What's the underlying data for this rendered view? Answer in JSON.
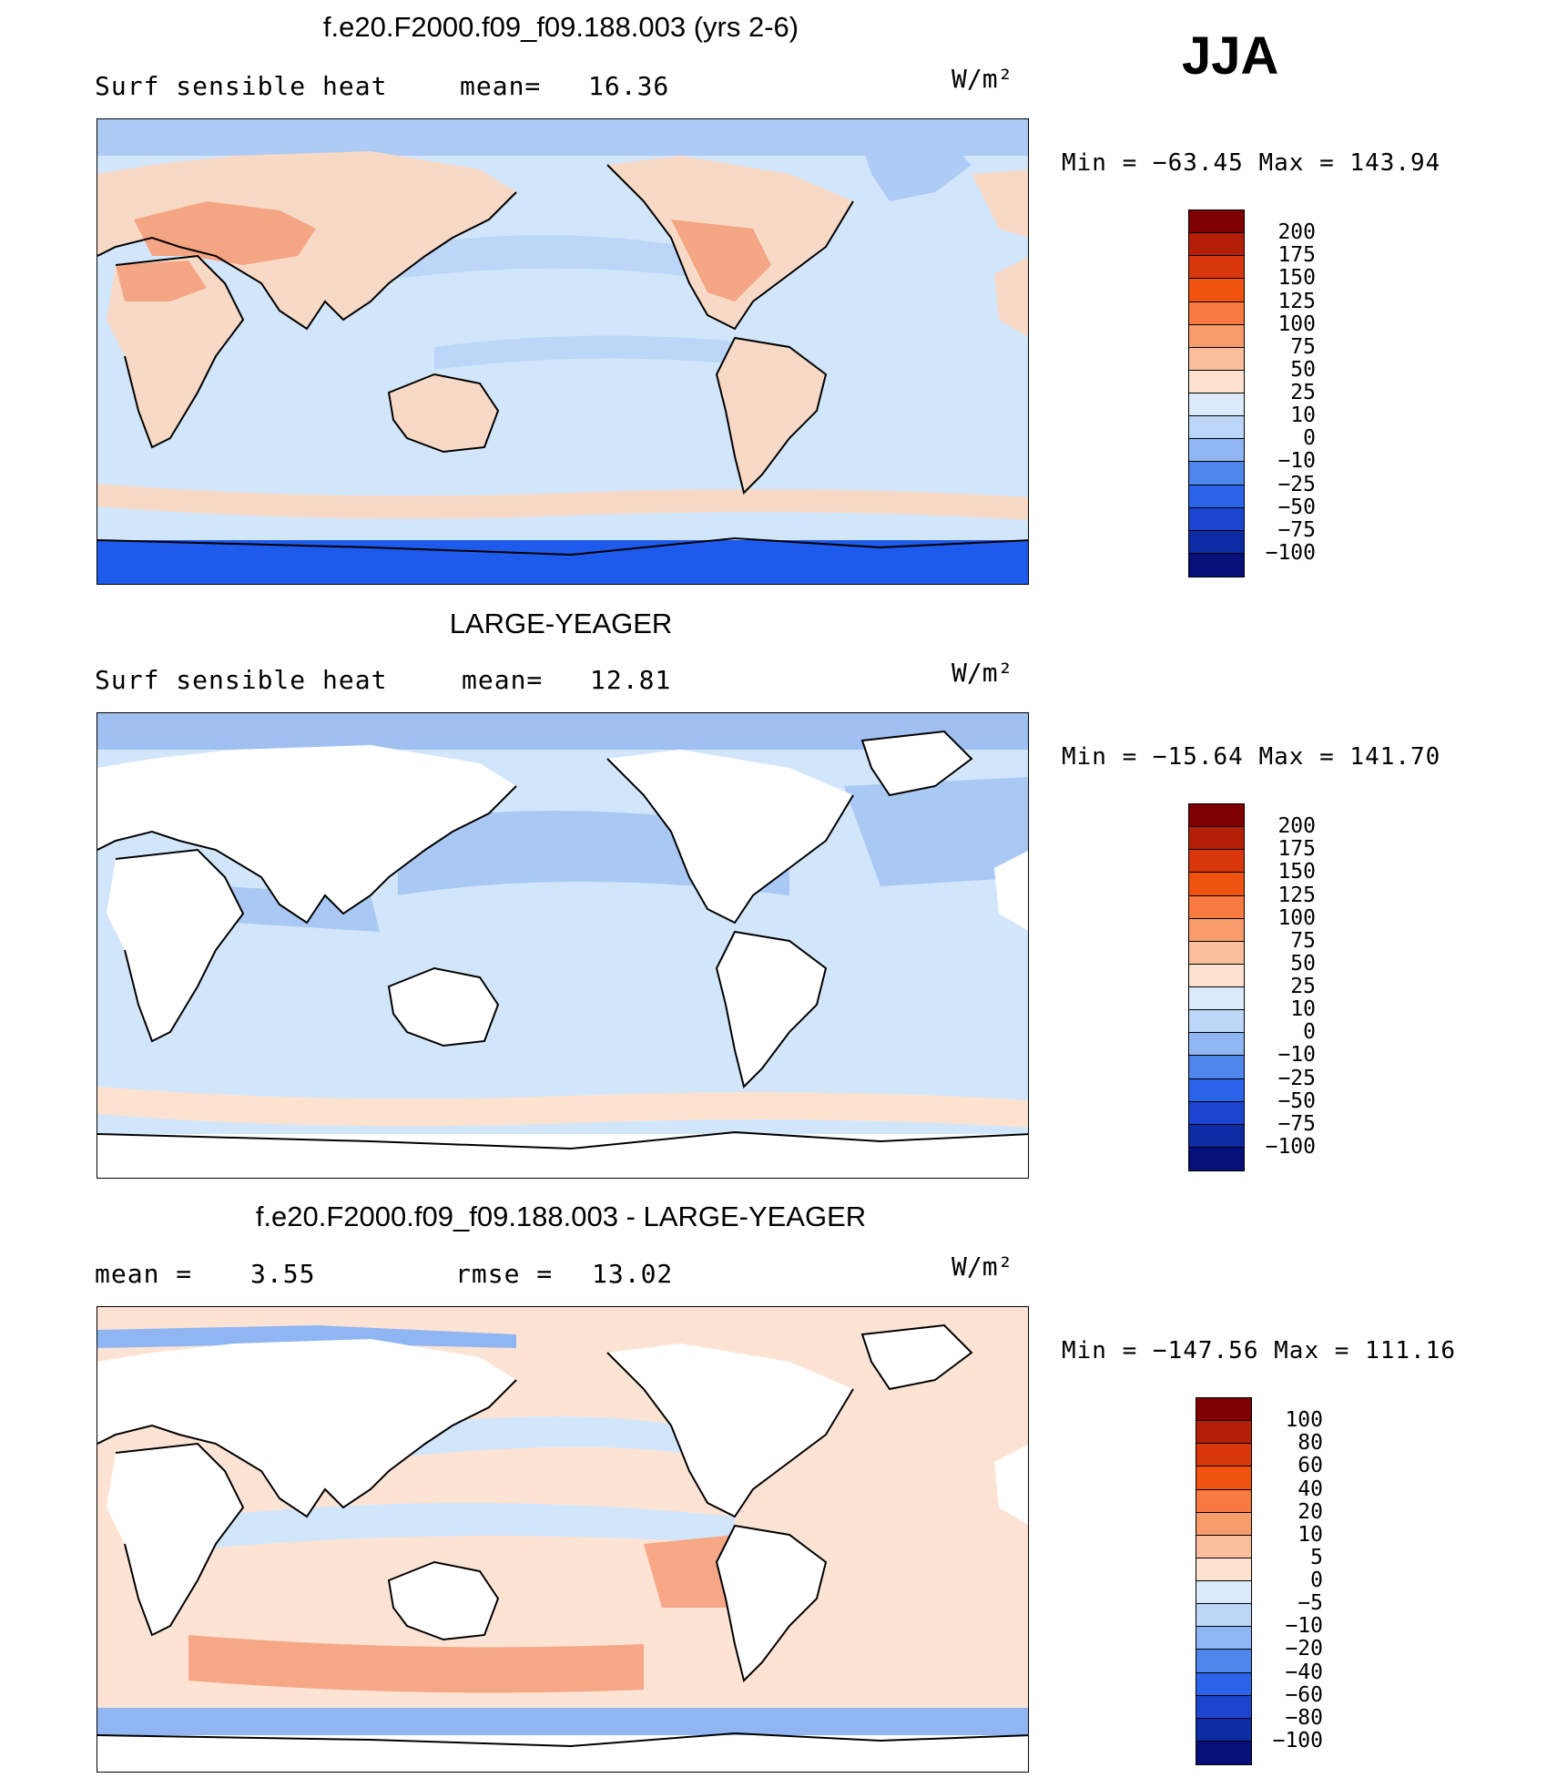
{
  "season": "JJA",
  "units_label": "W/m²",
  "panels": [
    {
      "title": "f.e20.F2000.f09_f09.188.003 (yrs 2-6)",
      "field_label": "Surf  sensible  heat",
      "stat1_label": "mean=",
      "stat1_value": "16.36",
      "stat2_label": "",
      "stat2_value": "",
      "min_max": "Min  =  −63.45  Max  =  143.94",
      "land_filled": true,
      "colors": {
        "ocean": "#d2e6fb",
        "ocean_alt": "#bcd6f7",
        "land": "#f8d9c6",
        "land_hot": "#f4a583",
        "ice": "#1e5aeb",
        "arctic": "#aecbf5"
      }
    },
    {
      "title": "LARGE-YEAGER",
      "field_label": "Surf  sensible  heat",
      "stat1_label": "mean=",
      "stat1_value": "12.81",
      "stat2_label": "",
      "stat2_value": "",
      "min_max": "Min  =  −15.64  Max  =  141.70",
      "land_filled": false,
      "colors": {
        "ocean": "#d2e6fb",
        "ocean_alt": "#a9c8f3",
        "land": "#ffffff",
        "land_hot": "#ffffff",
        "ice": "#ffffff",
        "arctic": "#9fc0f0"
      }
    },
    {
      "title": "f.e20.F2000.f09_f09.188.003 - LARGE-YEAGER",
      "field_label": "",
      "stat1_label": "mean  =",
      "stat1_value": "3.55",
      "stat2_label": "rmse  =",
      "stat2_value": "13.02",
      "min_max": "Min  =  −147.56  Max  =  111.16",
      "land_filled": false,
      "colors": {
        "ocean": "#fde3d4",
        "ocean_alt": "#d2e6fb",
        "land": "#ffffff",
        "land_hot": "#f6a786",
        "ice": "#ffffff",
        "arctic": "#fbe6d8"
      }
    }
  ],
  "colorbars": [
    {
      "labels": [
        "200",
        "175",
        "150",
        "125",
        "100",
        "75",
        "50",
        "25",
        "10",
        "0",
        "−10",
        "−25",
        "−50",
        "−75",
        "−100"
      ],
      "colors": [
        "#7f0000",
        "#b41f07",
        "#d8370b",
        "#f0520f",
        "#f77a40",
        "#f89c6c",
        "#f9bf9d",
        "#fde2cf",
        "#dbeafb",
        "#bcd6f7",
        "#8fb5f2",
        "#4f86ec",
        "#2b63ea",
        "#1b44cf",
        "#0c2ca5",
        "#050f78"
      ]
    },
    {
      "labels": [
        "200",
        "175",
        "150",
        "125",
        "100",
        "75",
        "50",
        "25",
        "10",
        "0",
        "−10",
        "−25",
        "−50",
        "−75",
        "−100"
      ],
      "colors": [
        "#7f0000",
        "#b41f07",
        "#d8370b",
        "#f0520f",
        "#f77a40",
        "#f89c6c",
        "#f9bf9d",
        "#fde2cf",
        "#dbeafb",
        "#bcd6f7",
        "#8fb5f2",
        "#4f86ec",
        "#2b63ea",
        "#1b44cf",
        "#0c2ca5",
        "#050f78"
      ]
    },
    {
      "labels": [
        "100",
        "80",
        "60",
        "40",
        "20",
        "10",
        "5",
        "0",
        "−5",
        "−10",
        "−20",
        "−40",
        "−60",
        "−80",
        "−100"
      ],
      "colors": [
        "#7f0000",
        "#b41f07",
        "#d8370b",
        "#f0520f",
        "#f77a40",
        "#f89c6c",
        "#f9bf9d",
        "#fde2cf",
        "#dbeafb",
        "#bcd6f7",
        "#8fb5f2",
        "#4f86ec",
        "#2b63ea",
        "#1b44cf",
        "#0c2ca5",
        "#050f78"
      ]
    }
  ]
}
